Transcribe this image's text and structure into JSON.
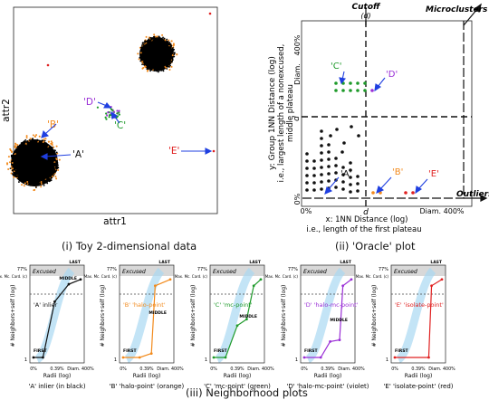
{
  "panel_a": {
    "xlabel": "attr1",
    "ylabel": "attr2",
    "labels": {
      "A": "'A'",
      "B": "'B'",
      "C": "'C'",
      "D": "'D'",
      "E": "'E'"
    },
    "caption": "(i) Toy 2-dimensional data"
  },
  "panel_b": {
    "top_label": "Cutoff",
    "top_label_sub": "(d)",
    "microclusters": "Microclusters",
    "outliers": "Outliers",
    "ylabel_line1": "y: Group 1NN Distance (log)",
    "ylabel_line2": "i.e., largest length of a nonexcused,",
    "ylabel_line3": "middle plateau",
    "xlabel_line1": "x: 1NN Distance (log)",
    "xlabel_line2": "i.e., length of the first plateau",
    "ytick_top": "400%",
    "ytick_diam": "Diam.",
    "ytick_d": "d",
    "ytick_zero": "0%",
    "xtick_zero": "0%",
    "xtick_d": "d",
    "xtick_diam": "Diam. 400%",
    "labels": {
      "A": "'A'",
      "B": "'B'",
      "C": "'C'",
      "D": "'D'",
      "E": "'E'"
    },
    "caption": "(ii) 'Oracle' plot"
  },
  "neighborhood": {
    "ylabel": "# Neighbors+self (log)",
    "xlabel": "Radii (log)",
    "ytick_max": "Max. Mc. Card. (c)",
    "ytick_pct": "77%",
    "ytick_one": "1",
    "xticks": [
      "0%",
      "0.39%",
      "Diam. 400%"
    ],
    "excused": "Excused",
    "first": "FIRST",
    "last": "LAST",
    "middle": "MIDDLE",
    "panels": [
      {
        "label": "'A' inlier",
        "caption": "'A' inlier (in black)",
        "color": "#111111"
      },
      {
        "label": "'B' 'halo-point'",
        "caption": "'B' 'halo-point' (orange)",
        "color": "#f28a1c"
      },
      {
        "label": "'C' 'mc-point'",
        "caption": "'C' 'mc-point' (green)",
        "color": "#1e9a2a"
      },
      {
        "label": "'D' 'halo-mc-point'",
        "caption": "'D' 'halo-mc-point' (violet)",
        "color": "#9a2fd6"
      },
      {
        "label": "'E' 'isolate-point'",
        "caption": "'E' 'isolate-point' (red)",
        "color": "#e02020"
      }
    ],
    "caption": "(iii) Neighborhood plots"
  },
  "colors": {
    "black": "#111111",
    "orange": "#f28a1c",
    "green": "#1e9a2a",
    "violet": "#9a2fd6",
    "red": "#e02020",
    "blue": "#1f3fe0",
    "halo": "#a9d8f2"
  }
}
